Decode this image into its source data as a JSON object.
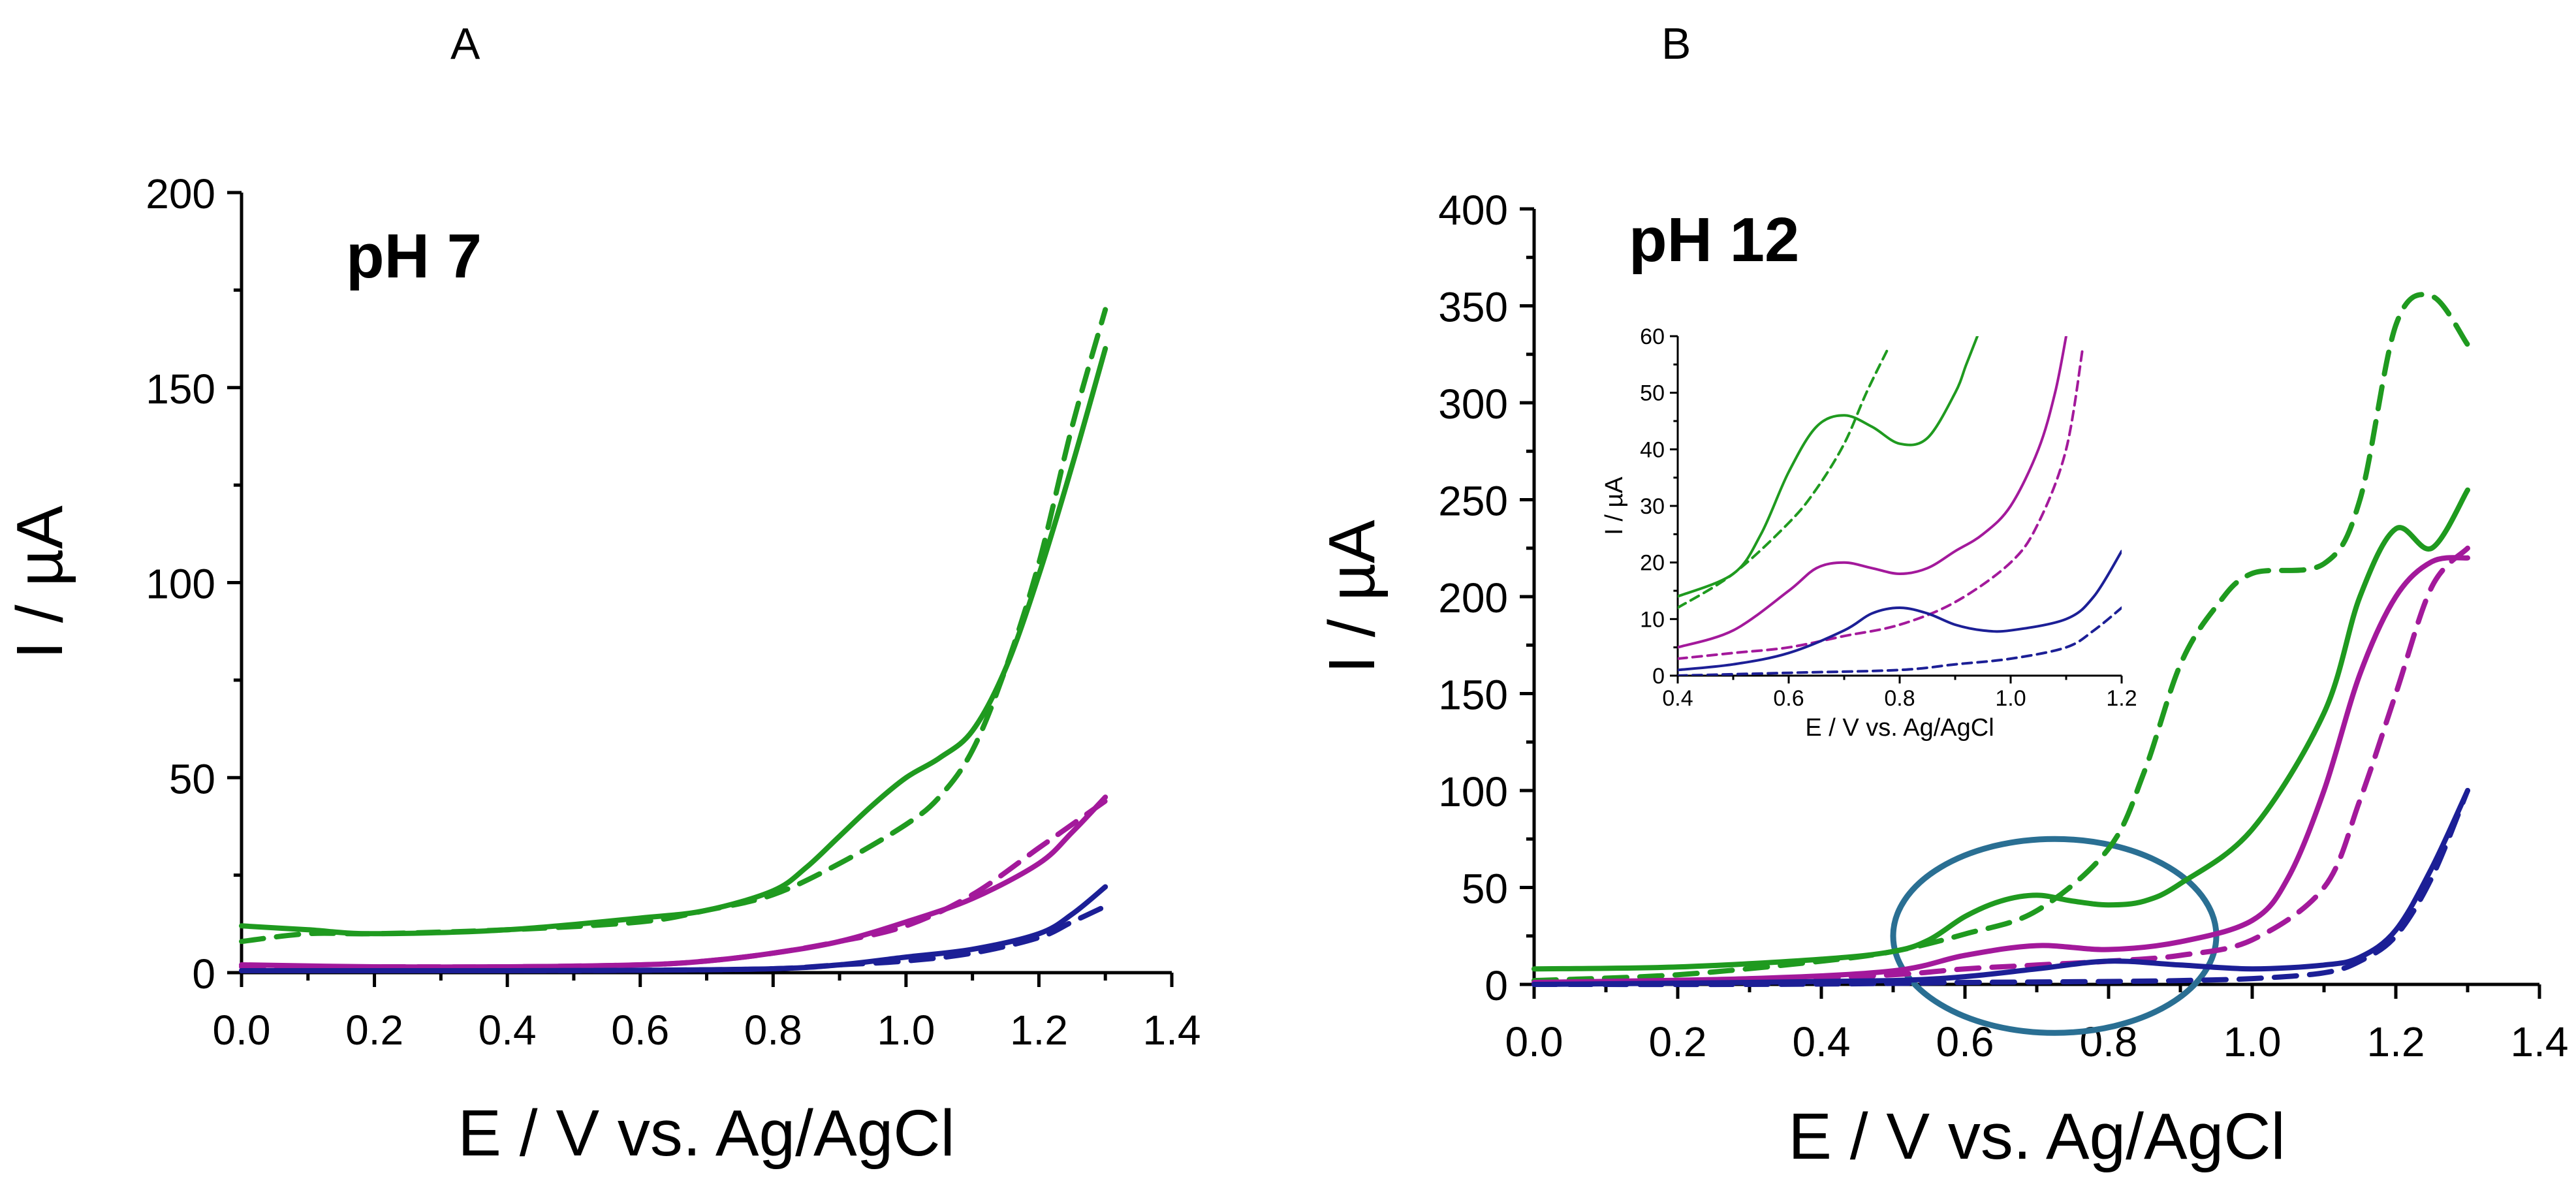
{
  "panel_letters": {
    "a": "A",
    "b": "B"
  },
  "colors": {
    "green": "#1f9a1f",
    "magenta": "#a3199b",
    "blue": "#1c1f96",
    "ellipse": "#2a6f93"
  },
  "chart_data": [
    {
      "type": "line",
      "panel": "A",
      "annotation": "pH 7",
      "xlabel": "E / V vs. Ag/AgCl",
      "ylabel": "I / µA",
      "xlim": [
        0,
        1.4
      ],
      "ylim": [
        0,
        200
      ],
      "xticks": [
        "0.0",
        "0.2",
        "0.4",
        "0.6",
        "0.8",
        "1.0",
        "1.2",
        "1.4"
      ],
      "yticks": [
        "0",
        "50",
        "100",
        "150",
        "200"
      ],
      "series": [
        {
          "name": "green solid",
          "color": "green",
          "dashed": false,
          "x": [
            0.0,
            0.1,
            0.2,
            0.4,
            0.6,
            0.7,
            0.8,
            0.85,
            0.9,
            0.95,
            1.0,
            1.05,
            1.1,
            1.15,
            1.2,
            1.25,
            1.3
          ],
          "y": [
            12,
            11,
            10,
            11,
            14,
            16,
            21,
            27,
            35,
            43,
            50,
            55,
            62,
            78,
            102,
            130,
            160
          ]
        },
        {
          "name": "green dashed",
          "color": "green",
          "dashed": true,
          "x": [
            0.0,
            0.1,
            0.2,
            0.4,
            0.6,
            0.7,
            0.8,
            0.9,
            1.0,
            1.05,
            1.1,
            1.15,
            1.2,
            1.25,
            1.3
          ],
          "y": [
            8,
            10,
            10,
            11,
            13,
            16,
            20,
            28,
            38,
            45,
            57,
            78,
            105,
            140,
            170
          ]
        },
        {
          "name": "magenta solid",
          "color": "magenta",
          "dashed": false,
          "x": [
            0.0,
            0.2,
            0.4,
            0.6,
            0.7,
            0.8,
            0.9,
            1.0,
            1.1,
            1.2,
            1.25,
            1.3
          ],
          "y": [
            2,
            1.5,
            1.5,
            2,
            3,
            5,
            8,
            13,
            19,
            28,
            36,
            45
          ]
        },
        {
          "name": "magenta dashed",
          "color": "magenta",
          "dashed": true,
          "x": [
            0.0,
            0.2,
            0.4,
            0.6,
            0.7,
            0.8,
            0.9,
            1.0,
            1.1,
            1.2,
            1.25,
            1.3
          ],
          "y": [
            1.5,
            1.5,
            1.5,
            2,
            3,
            5,
            8,
            12,
            20,
            32,
            38,
            44
          ]
        },
        {
          "name": "blue solid",
          "color": "blue",
          "dashed": false,
          "x": [
            0.0,
            0.4,
            0.6,
            0.8,
            0.9,
            1.0,
            1.1,
            1.2,
            1.25,
            1.3
          ],
          "y": [
            0.5,
            0.5,
            0.6,
            1,
            2,
            4,
            6,
            10,
            15,
            22
          ]
        },
        {
          "name": "blue dashed",
          "color": "blue",
          "dashed": true,
          "x": [
            0.0,
            0.4,
            0.6,
            0.8,
            0.9,
            1.0,
            1.1,
            1.2,
            1.25,
            1.3
          ],
          "y": [
            0.5,
            0.5,
            0.6,
            1,
            2,
            3,
            5,
            9,
            13,
            17
          ]
        }
      ]
    },
    {
      "type": "line",
      "panel": "B",
      "annotation": "pH 12",
      "xlabel": "E / V vs. Ag/AgCl",
      "ylabel": "I / µA",
      "xlim": [
        0,
        1.4
      ],
      "ylim": [
        0,
        400
      ],
      "xticks": [
        "0.0",
        "0.2",
        "0.4",
        "0.6",
        "0.8",
        "1.0",
        "1.2",
        "1.4"
      ],
      "yticks": [
        "0",
        "50",
        "100",
        "150",
        "200",
        "250",
        "300",
        "350",
        "400"
      ],
      "series": [
        {
          "name": "green solid",
          "color": "green",
          "dashed": false,
          "x": [
            0.0,
            0.2,
            0.4,
            0.5,
            0.55,
            0.6,
            0.65,
            0.7,
            0.75,
            0.8,
            0.85,
            0.9,
            1.0,
            1.1,
            1.15,
            1.2,
            1.25,
            1.3
          ],
          "y": [
            8,
            9,
            13,
            17,
            23,
            35,
            43,
            46,
            43,
            41,
            43,
            52,
            80,
            140,
            200,
            235,
            225,
            255
          ]
        },
        {
          "name": "green dashed",
          "color": "green",
          "dashed": true,
          "x": [
            0.0,
            0.2,
            0.4,
            0.5,
            0.6,
            0.7,
            0.8,
            0.85,
            0.9,
            0.95,
            1.0,
            1.1,
            1.15,
            1.2,
            1.25,
            1.3
          ],
          "y": [
            2,
            5,
            12,
            17,
            26,
            38,
            70,
            110,
            165,
            195,
            212,
            217,
            250,
            340,
            355,
            330
          ]
        },
        {
          "name": "magenta solid",
          "color": "magenta",
          "dashed": false,
          "x": [
            0.0,
            0.3,
            0.5,
            0.6,
            0.7,
            0.8,
            0.9,
            1.0,
            1.05,
            1.1,
            1.15,
            1.2,
            1.25,
            1.3
          ],
          "y": [
            1,
            3,
            7,
            15,
            20,
            18,
            22,
            33,
            55,
            100,
            160,
            200,
            218,
            220
          ]
        },
        {
          "name": "magenta dashed",
          "color": "magenta",
          "dashed": true,
          "x": [
            0.0,
            0.3,
            0.5,
            0.6,
            0.7,
            0.8,
            0.9,
            1.0,
            1.1,
            1.15,
            1.2,
            1.25,
            1.3
          ],
          "y": [
            0,
            2,
            5,
            8,
            10,
            12,
            15,
            23,
            50,
            95,
            150,
            205,
            225
          ]
        },
        {
          "name": "blue solid",
          "color": "blue",
          "dashed": false,
          "x": [
            0.0,
            0.3,
            0.5,
            0.6,
            0.7,
            0.8,
            0.9,
            1.0,
            1.1,
            1.15,
            1.2,
            1.25,
            1.3
          ],
          "y": [
            0,
            1,
            2,
            4,
            8,
            12,
            10,
            8,
            10,
            14,
            28,
            60,
            100
          ]
        },
        {
          "name": "blue dashed",
          "color": "blue",
          "dashed": true,
          "x": [
            0.0,
            0.3,
            0.5,
            0.6,
            0.8,
            0.9,
            1.0,
            1.1,
            1.15,
            1.2,
            1.25,
            1.3
          ],
          "y": [
            0,
            0,
            0.5,
            1,
            1.5,
            2,
            3,
            6,
            12,
            25,
            55,
            100
          ]
        }
      ],
      "highlight": {
        "shape": "ellipse",
        "color": "ellipse",
        "x_range": [
          0.5,
          0.95
        ],
        "y_range": [
          -25,
          75
        ]
      },
      "inset": {
        "xlabel": "E / V vs. Ag/AgCl",
        "ylabel": "I / µA",
        "xlim": [
          0.4,
          1.2
        ],
        "ylim": [
          0,
          60
        ],
        "xticks": [
          "0.4",
          "0.6",
          "0.8",
          "1.0",
          "1.2"
        ],
        "yticks": [
          "0",
          "10",
          "20",
          "30",
          "40",
          "50",
          "60"
        ],
        "series": [
          {
            "name": "green solid",
            "color": "green",
            "dashed": false,
            "x": [
              0.4,
              0.5,
              0.55,
              0.6,
              0.65,
              0.7,
              0.75,
              0.8,
              0.85,
              0.9,
              0.92,
              0.94
            ],
            "y": [
              14,
              18,
              25,
              36,
              44,
              46,
              44,
              41,
              42,
              50,
              55,
              60
            ]
          },
          {
            "name": "green dashed",
            "color": "green",
            "dashed": true,
            "x": [
              0.4,
              0.5,
              0.6,
              0.65,
              0.7,
              0.74,
              0.78
            ],
            "y": [
              12,
              18,
              27,
              33,
              41,
              50,
              58
            ]
          },
          {
            "name": "magenta solid",
            "color": "magenta",
            "dashed": false,
            "x": [
              0.4,
              0.5,
              0.6,
              0.65,
              0.7,
              0.75,
              0.8,
              0.85,
              0.9,
              0.95,
              1.0,
              1.05,
              1.08,
              1.1
            ],
            "y": [
              5,
              8,
              15,
              19,
              20,
              19,
              18,
              19,
              22,
              25,
              30,
              40,
              50,
              60
            ]
          },
          {
            "name": "magenta dashed",
            "color": "magenta",
            "dashed": true,
            "x": [
              0.4,
              0.5,
              0.6,
              0.7,
              0.8,
              0.9,
              1.0,
              1.05,
              1.1,
              1.13
            ],
            "y": [
              3,
              4,
              5,
              7,
              9,
              13,
              20,
              27,
              40,
              58
            ]
          },
          {
            "name": "blue solid",
            "color": "blue",
            "dashed": false,
            "x": [
              0.4,
              0.5,
              0.6,
              0.7,
              0.75,
              0.8,
              0.85,
              0.9,
              0.95,
              1.0,
              1.1,
              1.15,
              1.2
            ],
            "y": [
              1,
              2,
              4,
              8,
              11,
              12,
              11,
              9,
              8,
              8,
              10,
              14,
              22
            ]
          },
          {
            "name": "blue dashed",
            "color": "blue",
            "dashed": true,
            "x": [
              0.4,
              0.6,
              0.8,
              0.9,
              1.0,
              1.1,
              1.15,
              1.2
            ],
            "y": [
              0,
              0.5,
              1,
              2,
              3,
              5,
              8,
              12
            ]
          }
        ]
      }
    }
  ]
}
